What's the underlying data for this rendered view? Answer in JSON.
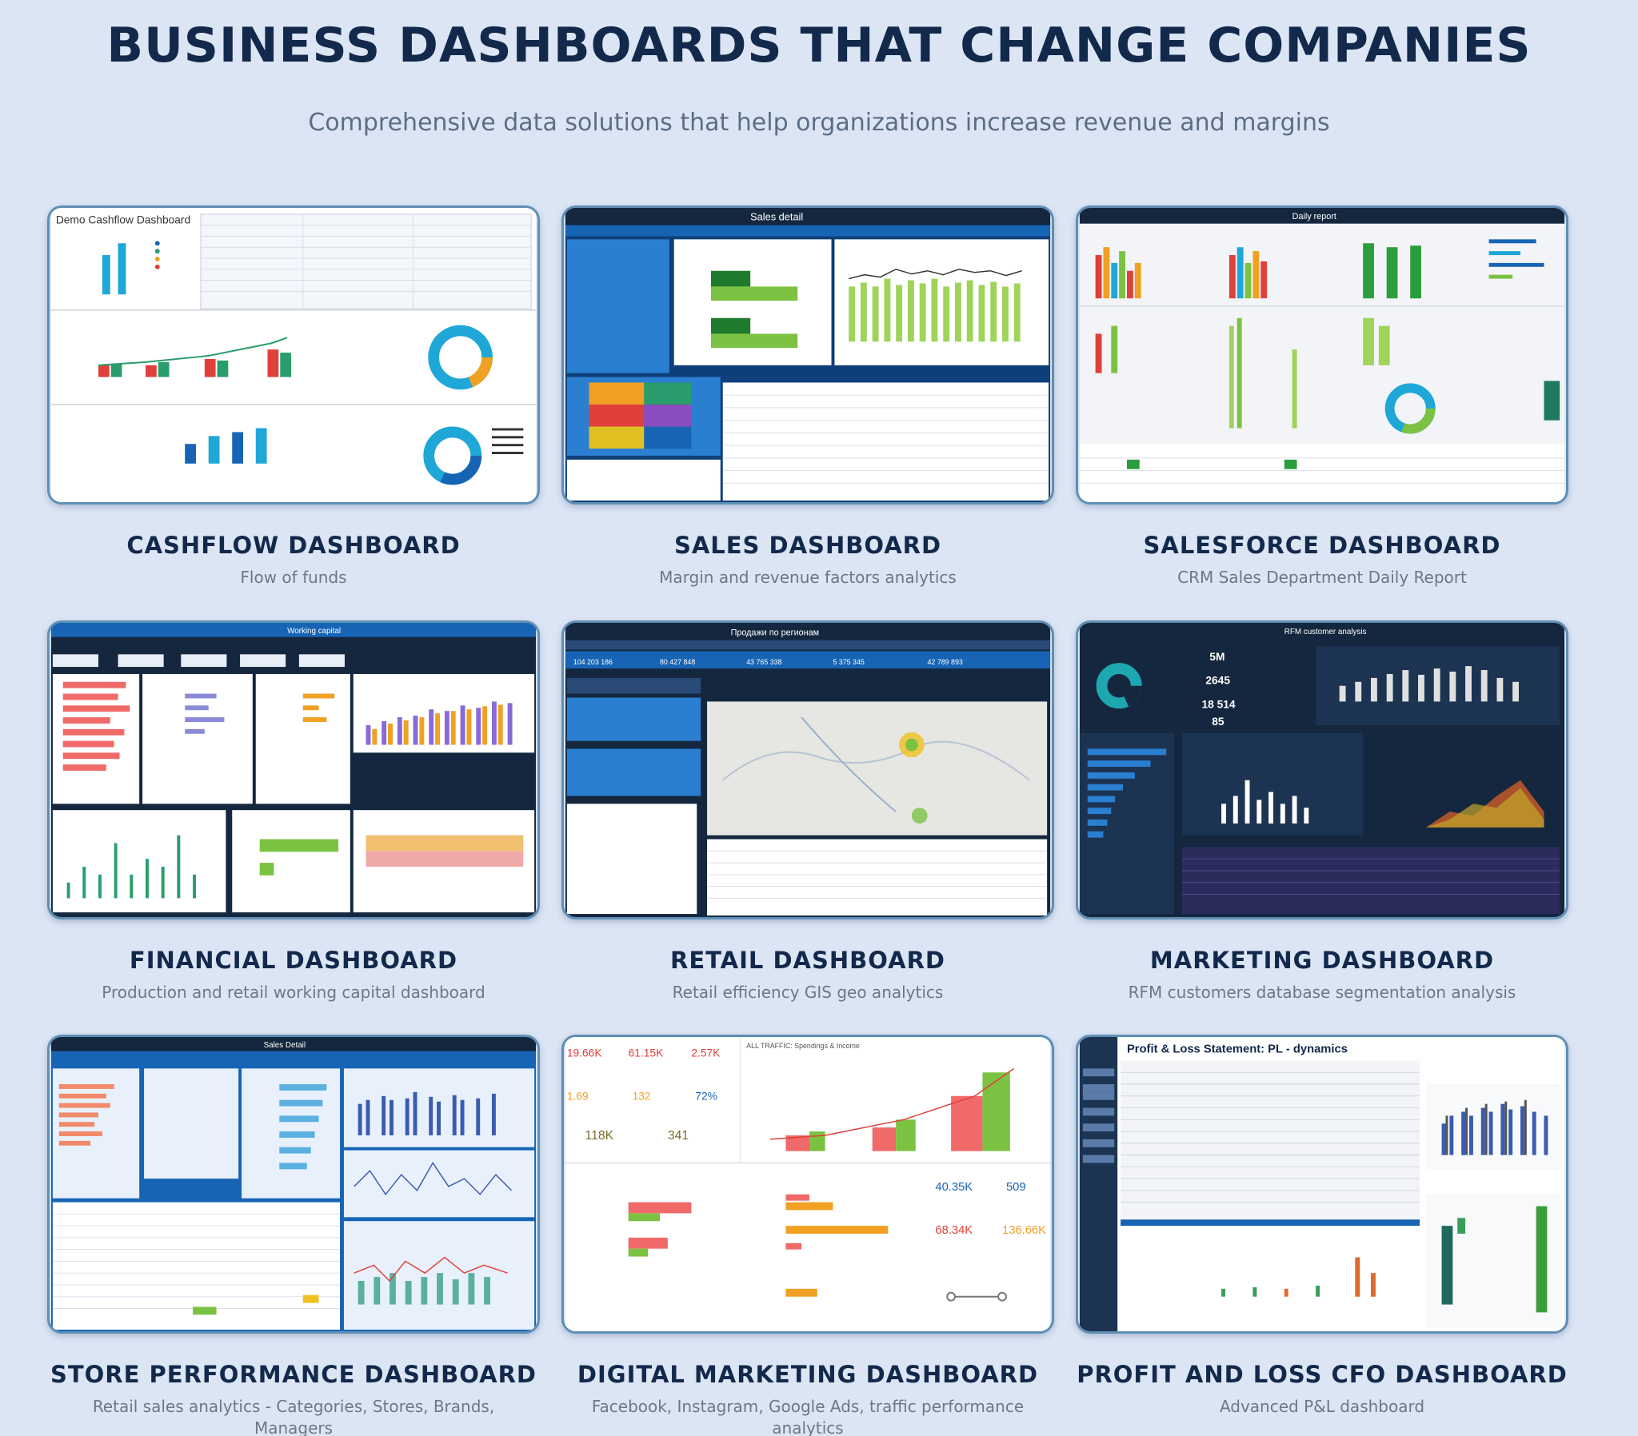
{
  "header": {
    "title": "BUSINESS DASHBOARDS THAT CHANGE COMPANIES",
    "subtitle": "Comprehensive data solutions that help organizations increase revenue and margins"
  },
  "cards": [
    {
      "title": "CASHFLOW DASHBOARD",
      "description": "Flow of funds",
      "thumb_header": "Demo Cashflow Dashboard"
    },
    {
      "title": "SALES DASHBOARD",
      "description": "Margin and revenue factors analytics",
      "thumb_header": "Sales detail"
    },
    {
      "title": "SALESFORCE DASHBOARD",
      "description": "CRM Sales Department Daily Report",
      "thumb_header": "Daily report"
    },
    {
      "title": "FINANCIAL DASHBOARD",
      "description": "Production and retail working capital dashboard",
      "thumb_header": "Working capital"
    },
    {
      "title": "RETAIL DASHBOARD",
      "description": "Retail efficiency GIS geo analytics",
      "thumb_header": "Продажи по регионам"
    },
    {
      "title": "MARKETING DASHBOARD",
      "description": "RFM customers database segmentation analysis",
      "thumb_header": "RFM customer analysis"
    },
    {
      "title": "STORE PERFORMANCE DASHBOARD",
      "description": "Retail sales analytics - Categories, Stores, Brands, Managers",
      "thumb_header": "Sales Detail"
    },
    {
      "title": "DIGITAL MARKETING DASHBOARD",
      "description": "Facebook, Instagram, Google Ads, traffic performance analytics",
      "thumb_header": "ALL TRAFFIC: Spendings & Income"
    },
    {
      "title": "PROFIT AND LOSS CFO DASHBOARD",
      "description": "Advanced P&L dashboard",
      "thumb_header": "Profit & Loss Statement: PL - dynamics"
    }
  ],
  "thumb_figures": {
    "retail_kpis": [
      "104 203 186",
      "80 427 848",
      "43 765 338",
      "5 375 345",
      "42 789 893"
    ],
    "marketing_kpis": [
      "5M",
      "2645",
      "18 514",
      "85"
    ],
    "digital_kpis": [
      "19.66K",
      "61.15K",
      "2.57K",
      "1.69",
      "132",
      "72%",
      "118K",
      "341",
      "40.35K",
      "509",
      "68.34K",
      "136.66K"
    ]
  },
  "colors": {
    "background": "#dbe5f4",
    "title": "#13294b",
    "subtitle": "#5b6e84",
    "card_border": "#5f8fb4",
    "dark_navy": "#14273f",
    "blue_panel": "#1764b5",
    "green": "#7cc242",
    "red": "#e0403a",
    "teal": "#1fa7b0"
  }
}
